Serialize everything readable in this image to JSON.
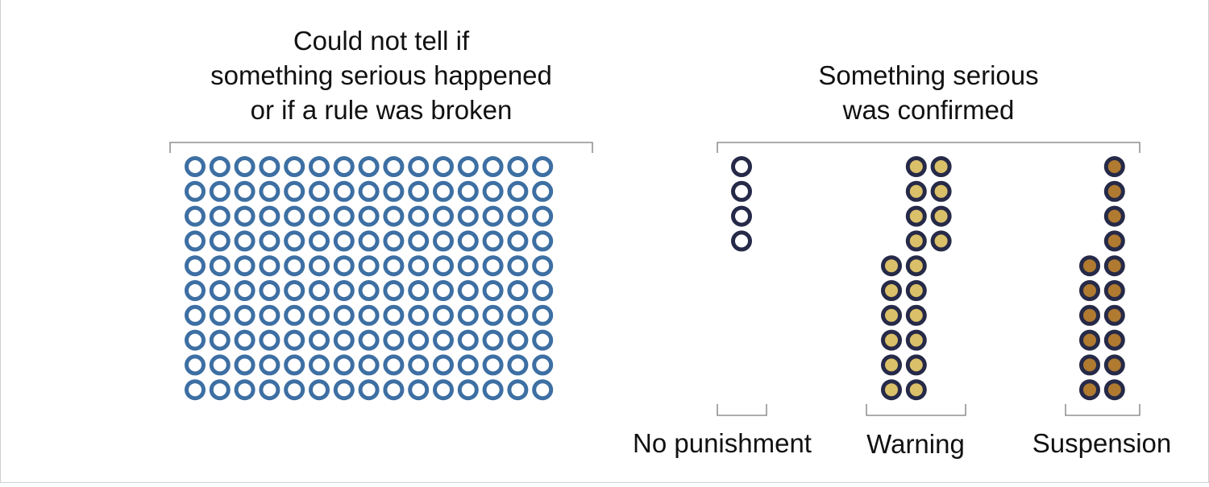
{
  "chart_data": {
    "type": "unit-dot-chart",
    "groups": [
      {
        "title_lines": [
          "Could not tell if",
          "something serious happened",
          "or if a rule was broken"
        ],
        "categories": [
          {
            "label": "",
            "count": 150,
            "color": "#3d6fa3",
            "fill": "#ffffff"
          }
        ]
      },
      {
        "title_lines": [
          "Something serious",
          "was confirmed"
        ],
        "categories": [
          {
            "label": "No punishment",
            "count": 4,
            "color": "#262a48",
            "fill": "#ffffff"
          },
          {
            "label": "Warning",
            "count": 20,
            "color": "#262a48",
            "fill": "#dbc06a"
          },
          {
            "label": "Suspension",
            "count": 16,
            "color": "#262a48",
            "fill": "#b07a30"
          }
        ]
      }
    ]
  }
}
